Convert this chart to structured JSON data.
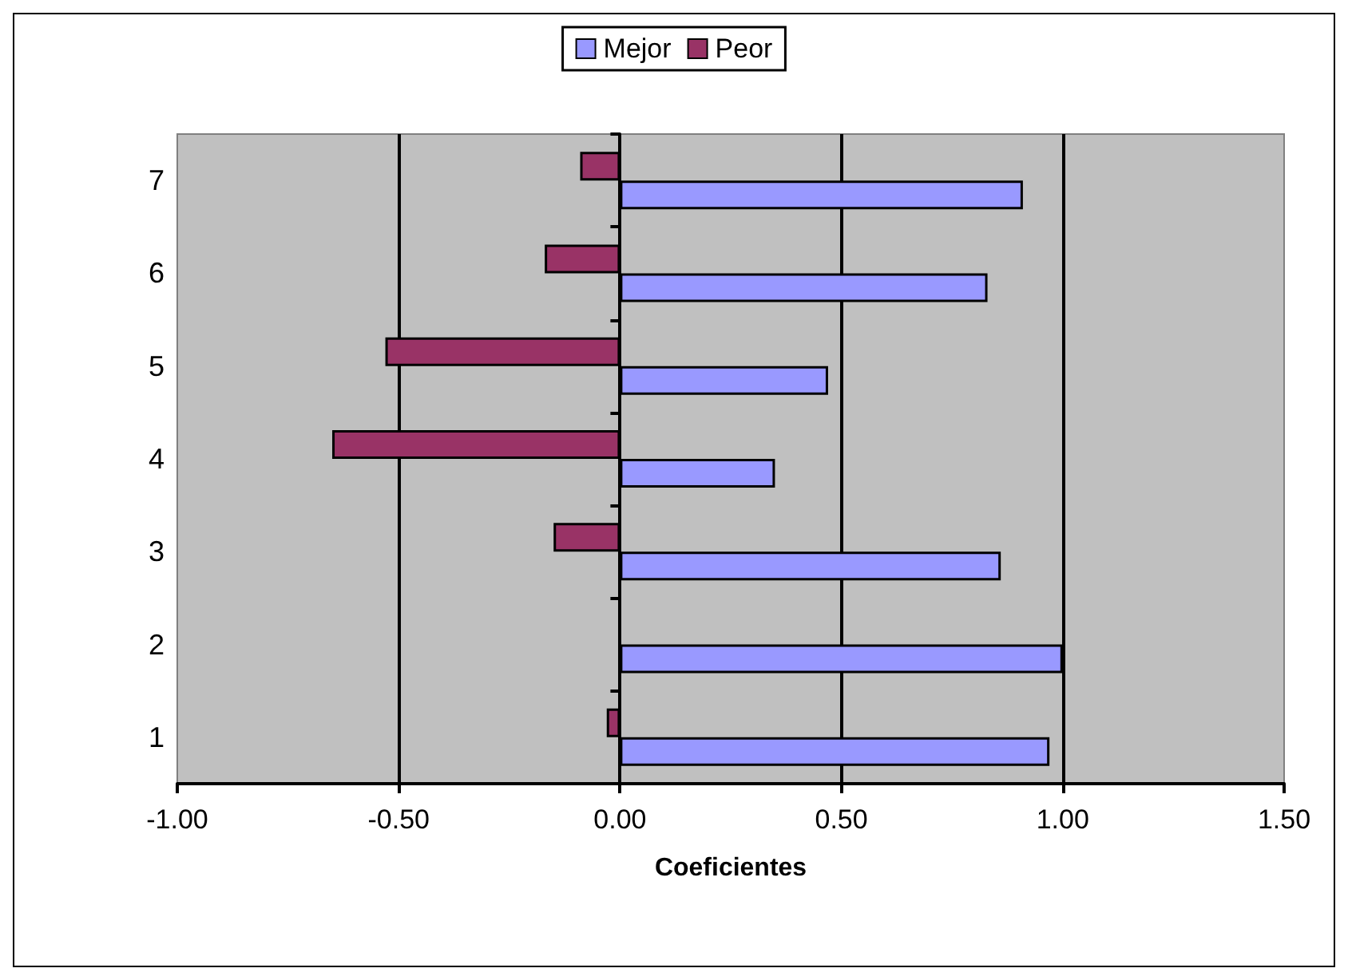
{
  "chart_data": {
    "type": "bar",
    "orientation": "horizontal",
    "xlabel": "Coeficientes",
    "categories": [
      "7",
      "6",
      "5",
      "4",
      "3",
      "2",
      "1"
    ],
    "series": [
      {
        "name": "Mejor",
        "color": "#9999ff",
        "values": [
          0.91,
          0.83,
          0.47,
          0.35,
          0.86,
          1.0,
          0.97
        ]
      },
      {
        "name": "Peor",
        "color": "#993366",
        "values": [
          -0.09,
          -0.17,
          -0.53,
          -0.65,
          -0.15,
          null,
          -0.03
        ]
      }
    ],
    "xlim": [
      -1,
      1.5
    ],
    "xticks": [
      {
        "value": -1,
        "label": "-1.00"
      },
      {
        "value": -0.5,
        "label": "-0.50"
      },
      {
        "value": 0,
        "label": "0.00"
      },
      {
        "value": 0.5,
        "label": "0.50"
      },
      {
        "value": 1,
        "label": "1.00"
      },
      {
        "value": 1.5,
        "label": "1.50"
      }
    ],
    "grid": "x",
    "legend": "top"
  }
}
